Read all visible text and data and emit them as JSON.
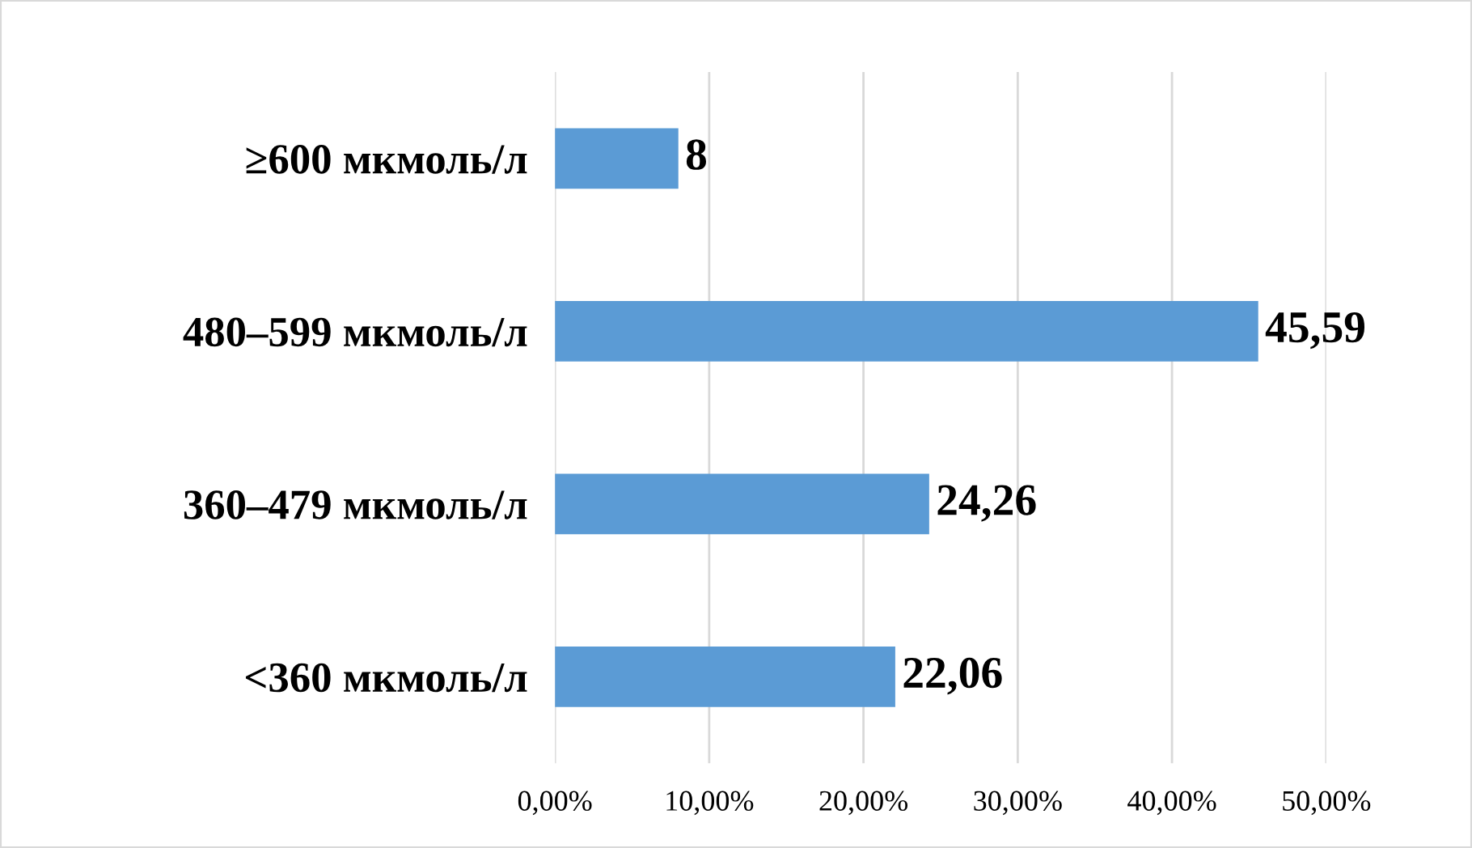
{
  "chart_data": {
    "type": "bar",
    "orientation": "horizontal",
    "categories": [
      "≥600 мкмоль/л",
      "480–599 мкмоль/л",
      "360–479 мкмоль/л",
      "<360 мкмоль/л"
    ],
    "values": [
      8,
      45.59,
      24.26,
      22.06
    ],
    "value_labels": [
      "8",
      "45,59",
      "24,26",
      "22,06"
    ],
    "color": "#5b9bd5",
    "xlim": [
      0,
      50
    ],
    "xticks": [
      {
        "value": 0,
        "label": "0,00%"
      },
      {
        "value": 10,
        "label": "10,00%"
      },
      {
        "value": 20,
        "label": "20,00%"
      },
      {
        "value": 30,
        "label": "30,00%"
      },
      {
        "value": 40,
        "label": "40,00%"
      },
      {
        "value": 50,
        "label": "50,00%"
      }
    ],
    "grid": "x"
  }
}
